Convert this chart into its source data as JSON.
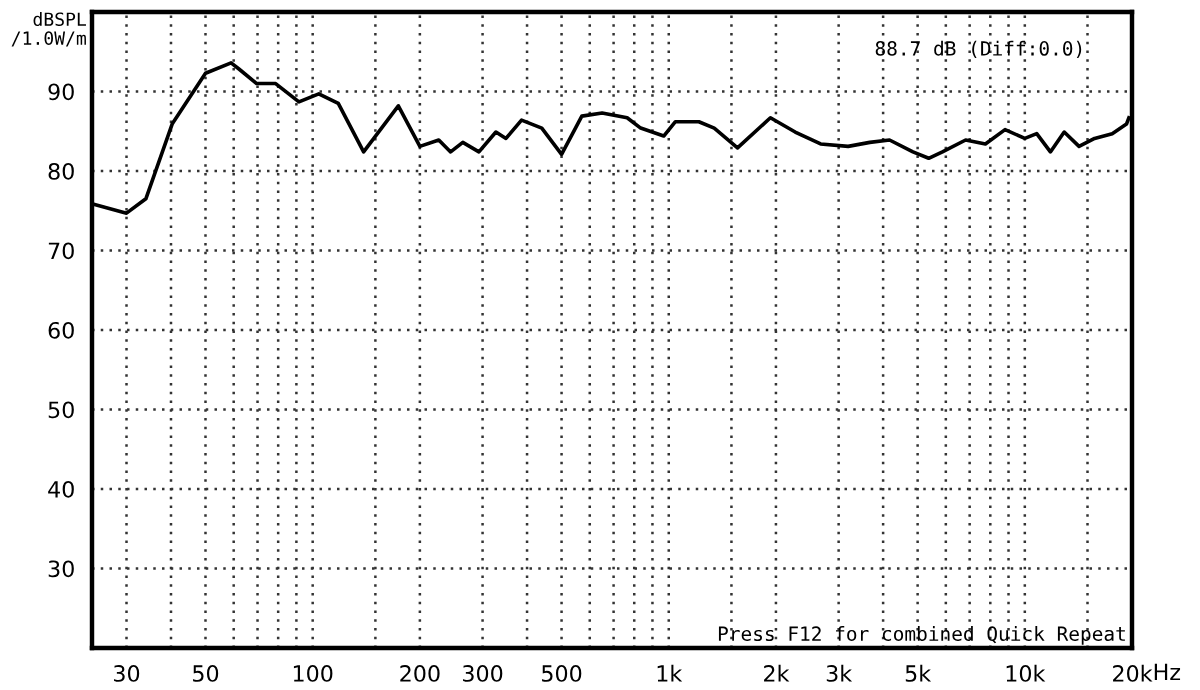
{
  "chart_data": {
    "type": "line",
    "ylabel": "dBSPL\n/1.0W/m",
    "annotations": [
      "88.7 dB (Diff:0.0)",
      "Press F12 for combined Quick Repeat"
    ],
    "log": "x",
    "grid": true,
    "marker": "none",
    "line_style": "solid",
    "xlim": [
      24,
      20000
    ],
    "ylim": [
      20,
      100
    ],
    "xticks": [
      30,
      {
        "value": 40,
        "label": null
      },
      50,
      {
        "value": 60,
        "label": null
      },
      {
        "value": 70,
        "label": null
      },
      {
        "value": 80,
        "label": null
      },
      {
        "value": 90,
        "label": null
      },
      100,
      {
        "value": 150,
        "label": null
      },
      200,
      300,
      {
        "value": 400,
        "label": null
      },
      500,
      {
        "value": 600,
        "label": null
      },
      {
        "value": 700,
        "label": null
      },
      {
        "value": 800,
        "label": null
      },
      {
        "value": 900,
        "label": null
      },
      {
        "value": 1000,
        "label": "1k"
      },
      {
        "value": 1500,
        "label": null
      },
      {
        "value": 2000,
        "label": "2k"
      },
      {
        "value": 3000,
        "label": "3k"
      },
      {
        "value": 4000,
        "label": null
      },
      {
        "value": 5000,
        "label": "5k"
      },
      {
        "value": 6000,
        "label": null
      },
      {
        "value": 7000,
        "label": null
      },
      {
        "value": 8000,
        "label": null
      },
      {
        "value": 9000,
        "label": null
      },
      {
        "value": 10000,
        "label": "10k"
      },
      {
        "value": 15000,
        "label": null
      },
      {
        "value": 20000,
        "label": "20k"
      }
    ],
    "xlabel": "Hz",
    "yticks": [
      30,
      40,
      50,
      60,
      70,
      80,
      90
    ],
    "series": [
      {
        "color": "#000000",
        "x": [
          24.4,
          30,
          34,
          40.3,
          50,
          59,
          62.2,
          69.6,
          78.7,
          91.5,
          104,
          118,
          139,
          174,
          200,
          226,
          244,
          264,
          293,
          327,
          349,
          386,
          440,
          500,
          570,
          650,
          764,
          834,
          968,
          1044,
          1215,
          1342,
          1560,
          1930,
          2265,
          2670,
          3190,
          3670,
          4170,
          4850,
          5370,
          5870,
          6820,
          7750,
          8800,
          10000,
          10800,
          11800,
          12900,
          14200,
          15700,
          17600,
          19300,
          19600
        ],
        "values": [
          75.8,
          74.7,
          76.5,
          85.9,
          92.3,
          93.6,
          92.8,
          91.0,
          91.0,
          88.7,
          89.7,
          88.5,
          82.4,
          88.2,
          83.1,
          83.9,
          82.4,
          83.6,
          82.4,
          84.9,
          84.1,
          86.4,
          85.4,
          82.1,
          86.9,
          87.3,
          86.7,
          85.4,
          84.4,
          86.2,
          86.2,
          85.4,
          82.9,
          86.7,
          84.9,
          83.4,
          83.1,
          83.6,
          83.9,
          82.4,
          81.6,
          82.4,
          83.9,
          83.4,
          85.2,
          84.1,
          84.7,
          82.4,
          84.9,
          83.1,
          84.1,
          84.7,
          85.9,
          86.7
        ]
      }
    ]
  }
}
